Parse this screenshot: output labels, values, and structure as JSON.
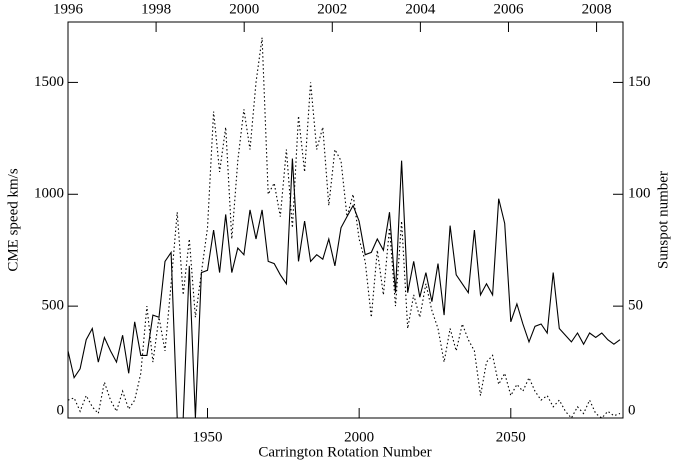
{
  "chart_data": {
    "type": "line",
    "xlabel": "Carrington Rotation Number",
    "ylabel": "CME speed km/s",
    "y2label": "Sunspot number",
    "x": [
      1904,
      1906,
      1908,
      1910,
      1912,
      1914,
      1916,
      1918,
      1920,
      1922,
      1924,
      1926,
      1928,
      1930,
      1932,
      1934,
      1936,
      1938,
      1940,
      1942,
      1944,
      1946,
      1948,
      1950,
      1952,
      1954,
      1956,
      1958,
      1960,
      1962,
      1964,
      1966,
      1968,
      1970,
      1972,
      1974,
      1976,
      1978,
      1980,
      1982,
      1984,
      1986,
      1988,
      1990,
      1992,
      1994,
      1996,
      1998,
      2000,
      2002,
      2004,
      2006,
      2008,
      2010,
      2012,
      2014,
      2016,
      2018,
      2020,
      2022,
      2024,
      2026,
      2028,
      2030,
      2032,
      2034,
      2036,
      2038,
      2040,
      2042,
      2044,
      2046,
      2048,
      2050,
      2052,
      2054,
      2056,
      2058,
      2060,
      2062,
      2064,
      2066,
      2068,
      2070,
      2072,
      2074,
      2076,
      2078,
      2080,
      2082,
      2084,
      2086
    ],
    "series": [
      {
        "color": "#000000",
        "dash": "solid",
        "axis": "y",
        "values": [
          300,
          180,
          220,
          350,
          400,
          250,
          360,
          300,
          250,
          370,
          200,
          430,
          280,
          280,
          460,
          450,
          700,
          740,
          0,
          0,
          680,
          0,
          650,
          660,
          840,
          650,
          910,
          650,
          760,
          730,
          930,
          800,
          930,
          700,
          690,
          640,
          600,
          1160,
          700,
          880,
          700,
          730,
          710,
          800,
          680,
          850,
          900,
          950,
          880,
          730,
          740,
          800,
          750,
          920,
          560,
          1150,
          560,
          700,
          540,
          650,
          520,
          690,
          460,
          860,
          640,
          600,
          560,
          840,
          550,
          600,
          550,
          980,
          870,
          430,
          510,
          420,
          340,
          410,
          420,
          380,
          650,
          400,
          370,
          340,
          380,
          330,
          380,
          360,
          380,
          350,
          330,
          350
        ]
      },
      {
        "color": "#000000",
        "dash": "dotted",
        "axis": "y2",
        "values": [
          8,
          9,
          3,
          10,
          5,
          2,
          16,
          8,
          3,
          12,
          4,
          8,
          20,
          50,
          25,
          45,
          30,
          60,
          92,
          55,
          80,
          45,
          65,
          85,
          137,
          110,
          130,
          80,
          115,
          138,
          120,
          150,
          170,
          100,
          105,
          90,
          120,
          85,
          135,
          110,
          150,
          120,
          130,
          95,
          120,
          115,
          90,
          100,
          80,
          70,
          45,
          75,
          55,
          85,
          50,
          88,
          40,
          55,
          45,
          60,
          48,
          40,
          25,
          40,
          30,
          42,
          35,
          30,
          10,
          25,
          28,
          15,
          20,
          10,
          15,
          12,
          18,
          12,
          8,
          10,
          5,
          8,
          3,
          0,
          5,
          2,
          8,
          2,
          0,
          3,
          1,
          2
        ]
      }
    ],
    "xlim": [
      1904,
      2087
    ],
    "xticks": [
      1950,
      2000,
      2050
    ],
    "x2lim": [
      1996,
      2008.6
    ],
    "x2ticks": [
      1996,
      1998,
      2000,
      2002,
      2004,
      2006,
      2008
    ],
    "ylim": [
      0,
      1770
    ],
    "yticks": [
      0,
      500,
      1000,
      1500
    ],
    "y2lim": [
      0,
      177
    ],
    "y2ticks": [
      0,
      50,
      100,
      150
    ]
  }
}
